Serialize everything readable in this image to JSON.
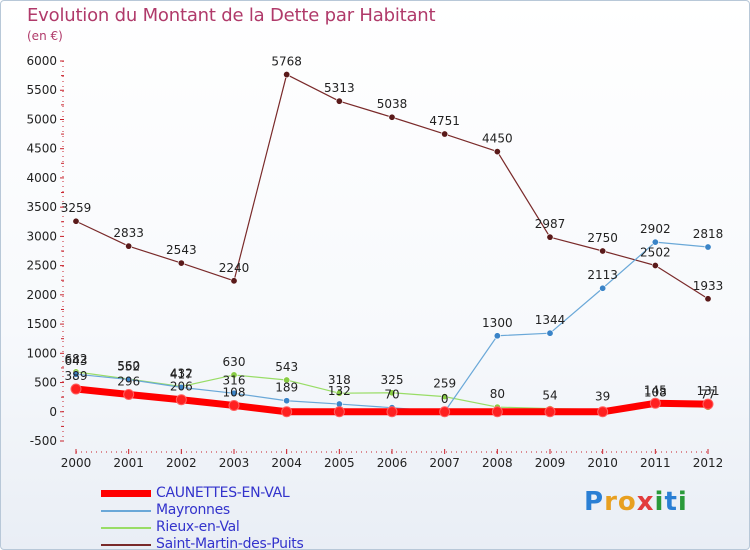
{
  "title": "Evolution du Montant de la Dette par Habitant",
  "subtitle": "(en €)",
  "logo": {
    "text": "Proxiti",
    "letters": [
      "P",
      "r",
      "o",
      "x",
      "i",
      "t",
      "i"
    ],
    "colors": [
      "#2a7fd4",
      "#e8a020",
      "#e8a020",
      "#e23c3c",
      "#2a9a3a",
      "#2a7fd4",
      "#2a9a3a"
    ]
  },
  "chart_data": {
    "type": "line",
    "x": [
      2000,
      2001,
      2002,
      2003,
      2004,
      2005,
      2006,
      2007,
      2008,
      2009,
      2010,
      2011,
      2012
    ],
    "ylim": [
      -500,
      6000
    ],
    "yticks": [
      -500,
      0,
      500,
      1000,
      1500,
      2000,
      2500,
      3000,
      3500,
      4000,
      4500,
      5000,
      5500,
      6000
    ],
    "grid": false,
    "legend_position": "bottom-left",
    "series": [
      {
        "name": "CAUNETTES-EN-VAL",
        "color": "#ff0000",
        "marker_color": "#ff2020",
        "values": [
          389,
          296,
          206,
          108,
          0,
          0,
          0,
          0,
          0,
          0,
          0,
          145,
          131
        ]
      },
      {
        "name": "Mayronnes",
        "color": "#6aa8d8",
        "marker_color": "#3a84c8",
        "values": [
          643,
          552,
          417,
          316,
          189,
          132,
          70,
          0,
          1300,
          1344,
          2113,
          2902,
          2818
        ]
      },
      {
        "name": "Rieux-en-Val",
        "color": "#99dd66",
        "marker_color": "#88cc44",
        "values": [
          682,
          560,
          432,
          630,
          543,
          318,
          325,
          259,
          80,
          54,
          39,
          108,
          77
        ]
      },
      {
        "name": "Saint-Martin-des-Puits",
        "color": "#7a2a2a",
        "marker_color": "#5a1a1a",
        "values": [
          3259,
          2833,
          2543,
          2240,
          5768,
          5313,
          5038,
          4751,
          4450,
          2987,
          2750,
          2502,
          1933
        ]
      }
    ],
    "data_labels": {
      "CAUNETTES-EN-VAL": [
        "389",
        "296",
        "206",
        "108",
        "",
        "",
        "",
        "",
        "",
        "",
        "",
        "145",
        "131"
      ],
      "Mayronnes": [
        "643",
        "552",
        "417",
        "316",
        "189",
        "132",
        "70",
        "0",
        "1300",
        "1344",
        "2113",
        "2902",
        "2818"
      ],
      "Rieux-en-Val": [
        "682",
        "560",
        "432",
        "630",
        "543",
        "318",
        "325",
        "259",
        "80",
        "54",
        "39",
        "108",
        "77"
      ],
      "Saint-Martin-des-Puits": [
        "3259",
        "2833",
        "2543",
        "2240",
        "5768",
        "5313",
        "5038",
        "4751",
        "4450",
        "2987",
        "2750",
        "2502",
        "1933"
      ]
    }
  }
}
